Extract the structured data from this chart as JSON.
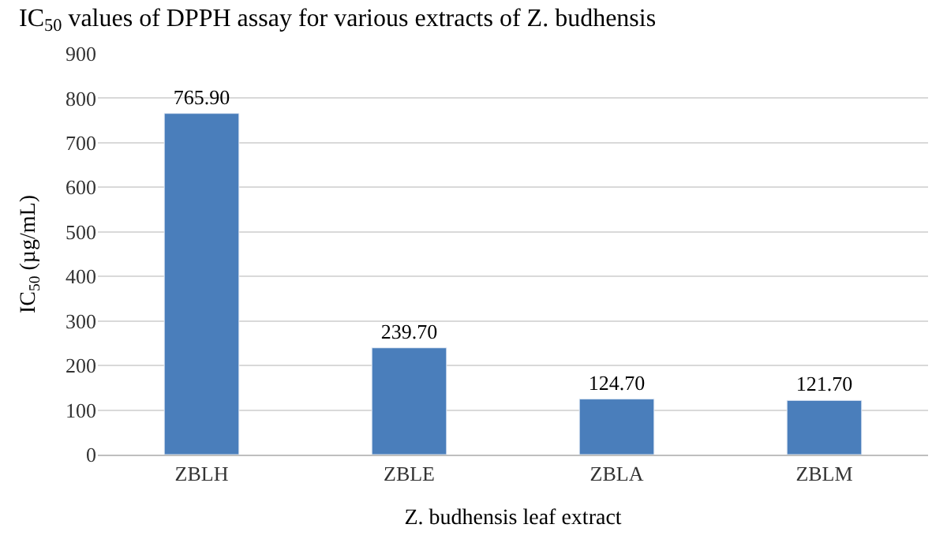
{
  "chart_data": {
    "type": "bar",
    "title": "IC$_{50}$ values of DPPH assay for various extracts of Z. budhensis",
    "xlabel": "Z. budhensis leaf extract",
    "ylabel": "IC$_{50}$ (µg/mL)",
    "categories": [
      "ZBLH",
      "ZBLE",
      "ZBLA",
      "ZBLM"
    ],
    "values": [
      765.9,
      239.7,
      124.7,
      121.7
    ],
    "value_labels": [
      "765.90",
      "239.70",
      "124.70",
      "121.70"
    ],
    "color": "#4a7ebb",
    "ylim": [
      0,
      900
    ],
    "yticks": [
      0,
      100,
      200,
      300,
      400,
      500,
      600,
      700,
      800,
      900
    ],
    "grid": "y"
  }
}
